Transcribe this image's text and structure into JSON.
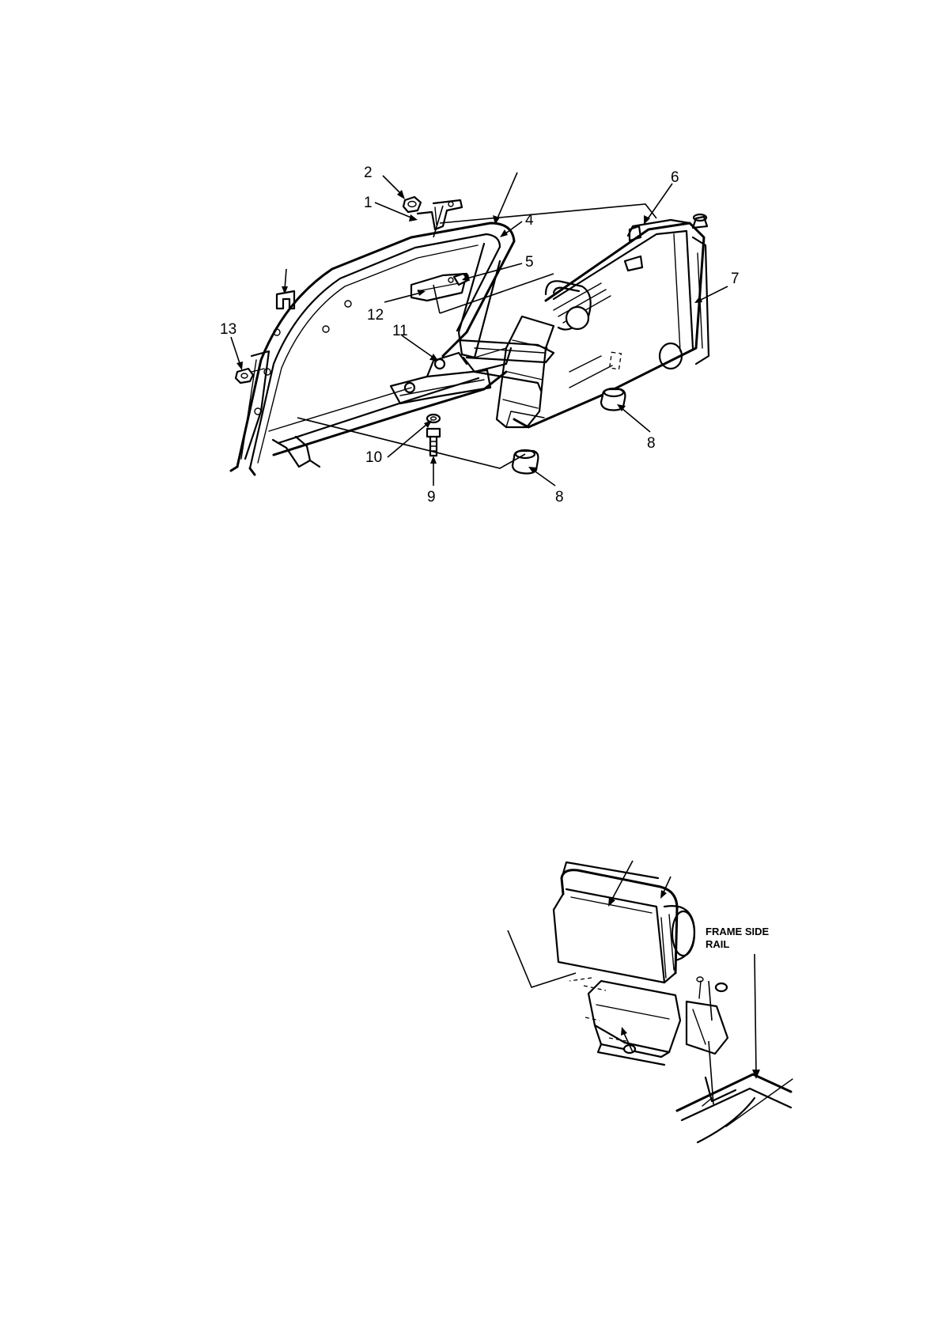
{
  "figure_top": {
    "callouts": [
      "1",
      "2",
      "4",
      "5",
      "6",
      "7",
      "8",
      "8",
      "9",
      "10",
      "11",
      "12",
      "13"
    ]
  },
  "figure_bottom": {
    "frame_rail_label_line1": "FRAME SIDE",
    "frame_rail_label_line2": "RAIL"
  }
}
